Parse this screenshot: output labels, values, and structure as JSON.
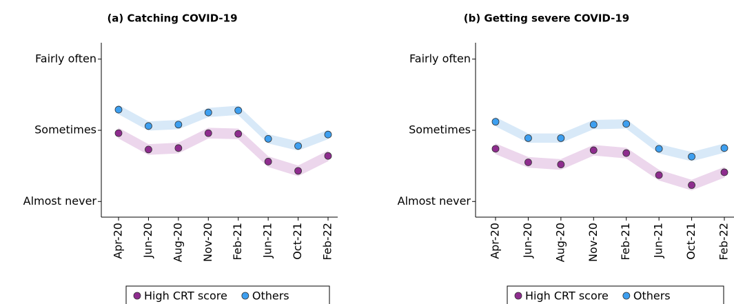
{
  "chart_data": [
    {
      "type": "line",
      "title": "(a) Catching COVID-19",
      "x": [
        "Apr-20",
        "Jun-20",
        "Aug-20",
        "Nov-20",
        "Feb-21",
        "Jun-21",
        "Oct-21",
        "Feb-22"
      ],
      "ylim": [
        0.78,
        3.23
      ],
      "yticks": [
        {
          "value": 1,
          "label": "Almost never"
        },
        {
          "value": 2,
          "label": "Sometimes"
        },
        {
          "value": 3,
          "label": "Fairly often"
        }
      ],
      "legend": "bottom",
      "series": [
        {
          "name": "High CRT score",
          "color": "#8e2c8e",
          "band_color": "#ecd6ec",
          "values": [
            1.96,
            1.73,
            1.75,
            1.96,
            1.95,
            1.56,
            1.43,
            1.64
          ],
          "lower": [
            1.89,
            1.66,
            1.68,
            1.89,
            1.88,
            1.49,
            1.36,
            1.57
          ],
          "upper": [
            2.03,
            1.8,
            1.82,
            2.03,
            2.02,
            1.63,
            1.5,
            1.71
          ]
        },
        {
          "name": "Others",
          "color": "#3d9ff0",
          "band_color": "#d8e9f8",
          "values": [
            2.29,
            2.06,
            2.08,
            2.25,
            2.28,
            1.88,
            1.78,
            1.94
          ],
          "lower": [
            2.23,
            2.0,
            2.02,
            2.19,
            2.22,
            1.82,
            1.72,
            1.88
          ],
          "upper": [
            2.35,
            2.12,
            2.14,
            2.31,
            2.34,
            1.94,
            1.84,
            2.0
          ]
        }
      ]
    },
    {
      "type": "line",
      "title": "(b) Getting severe COVID-19",
      "x": [
        "Apr-20",
        "Jun-20",
        "Aug-20",
        "Nov-20",
        "Feb-21",
        "Jun-21",
        "Oct-21",
        "Feb-22"
      ],
      "ylim": [
        0.78,
        3.23
      ],
      "yticks": [
        {
          "value": 1,
          "label": "Almost never"
        },
        {
          "value": 2,
          "label": "Sometimes"
        },
        {
          "value": 3,
          "label": "Fairly often"
        }
      ],
      "legend": "bottom",
      "series": [
        {
          "name": "High CRT score",
          "color": "#8e2c8e",
          "band_color": "#ecd6ec",
          "values": [
            1.74,
            1.55,
            1.52,
            1.72,
            1.68,
            1.37,
            1.23,
            1.41
          ],
          "lower": [
            1.67,
            1.48,
            1.45,
            1.65,
            1.61,
            1.3,
            1.16,
            1.34
          ],
          "upper": [
            1.81,
            1.62,
            1.59,
            1.79,
            1.75,
            1.44,
            1.3,
            1.48
          ]
        },
        {
          "name": "Others",
          "color": "#3d9ff0",
          "band_color": "#d8e9f8",
          "values": [
            2.12,
            1.89,
            1.89,
            2.08,
            2.09,
            1.74,
            1.63,
            1.75
          ],
          "lower": [
            2.06,
            1.83,
            1.83,
            2.02,
            2.03,
            1.68,
            1.57,
            1.69
          ],
          "upper": [
            2.18,
            1.95,
            1.95,
            2.14,
            2.15,
            1.8,
            1.69,
            1.81
          ]
        }
      ]
    }
  ]
}
